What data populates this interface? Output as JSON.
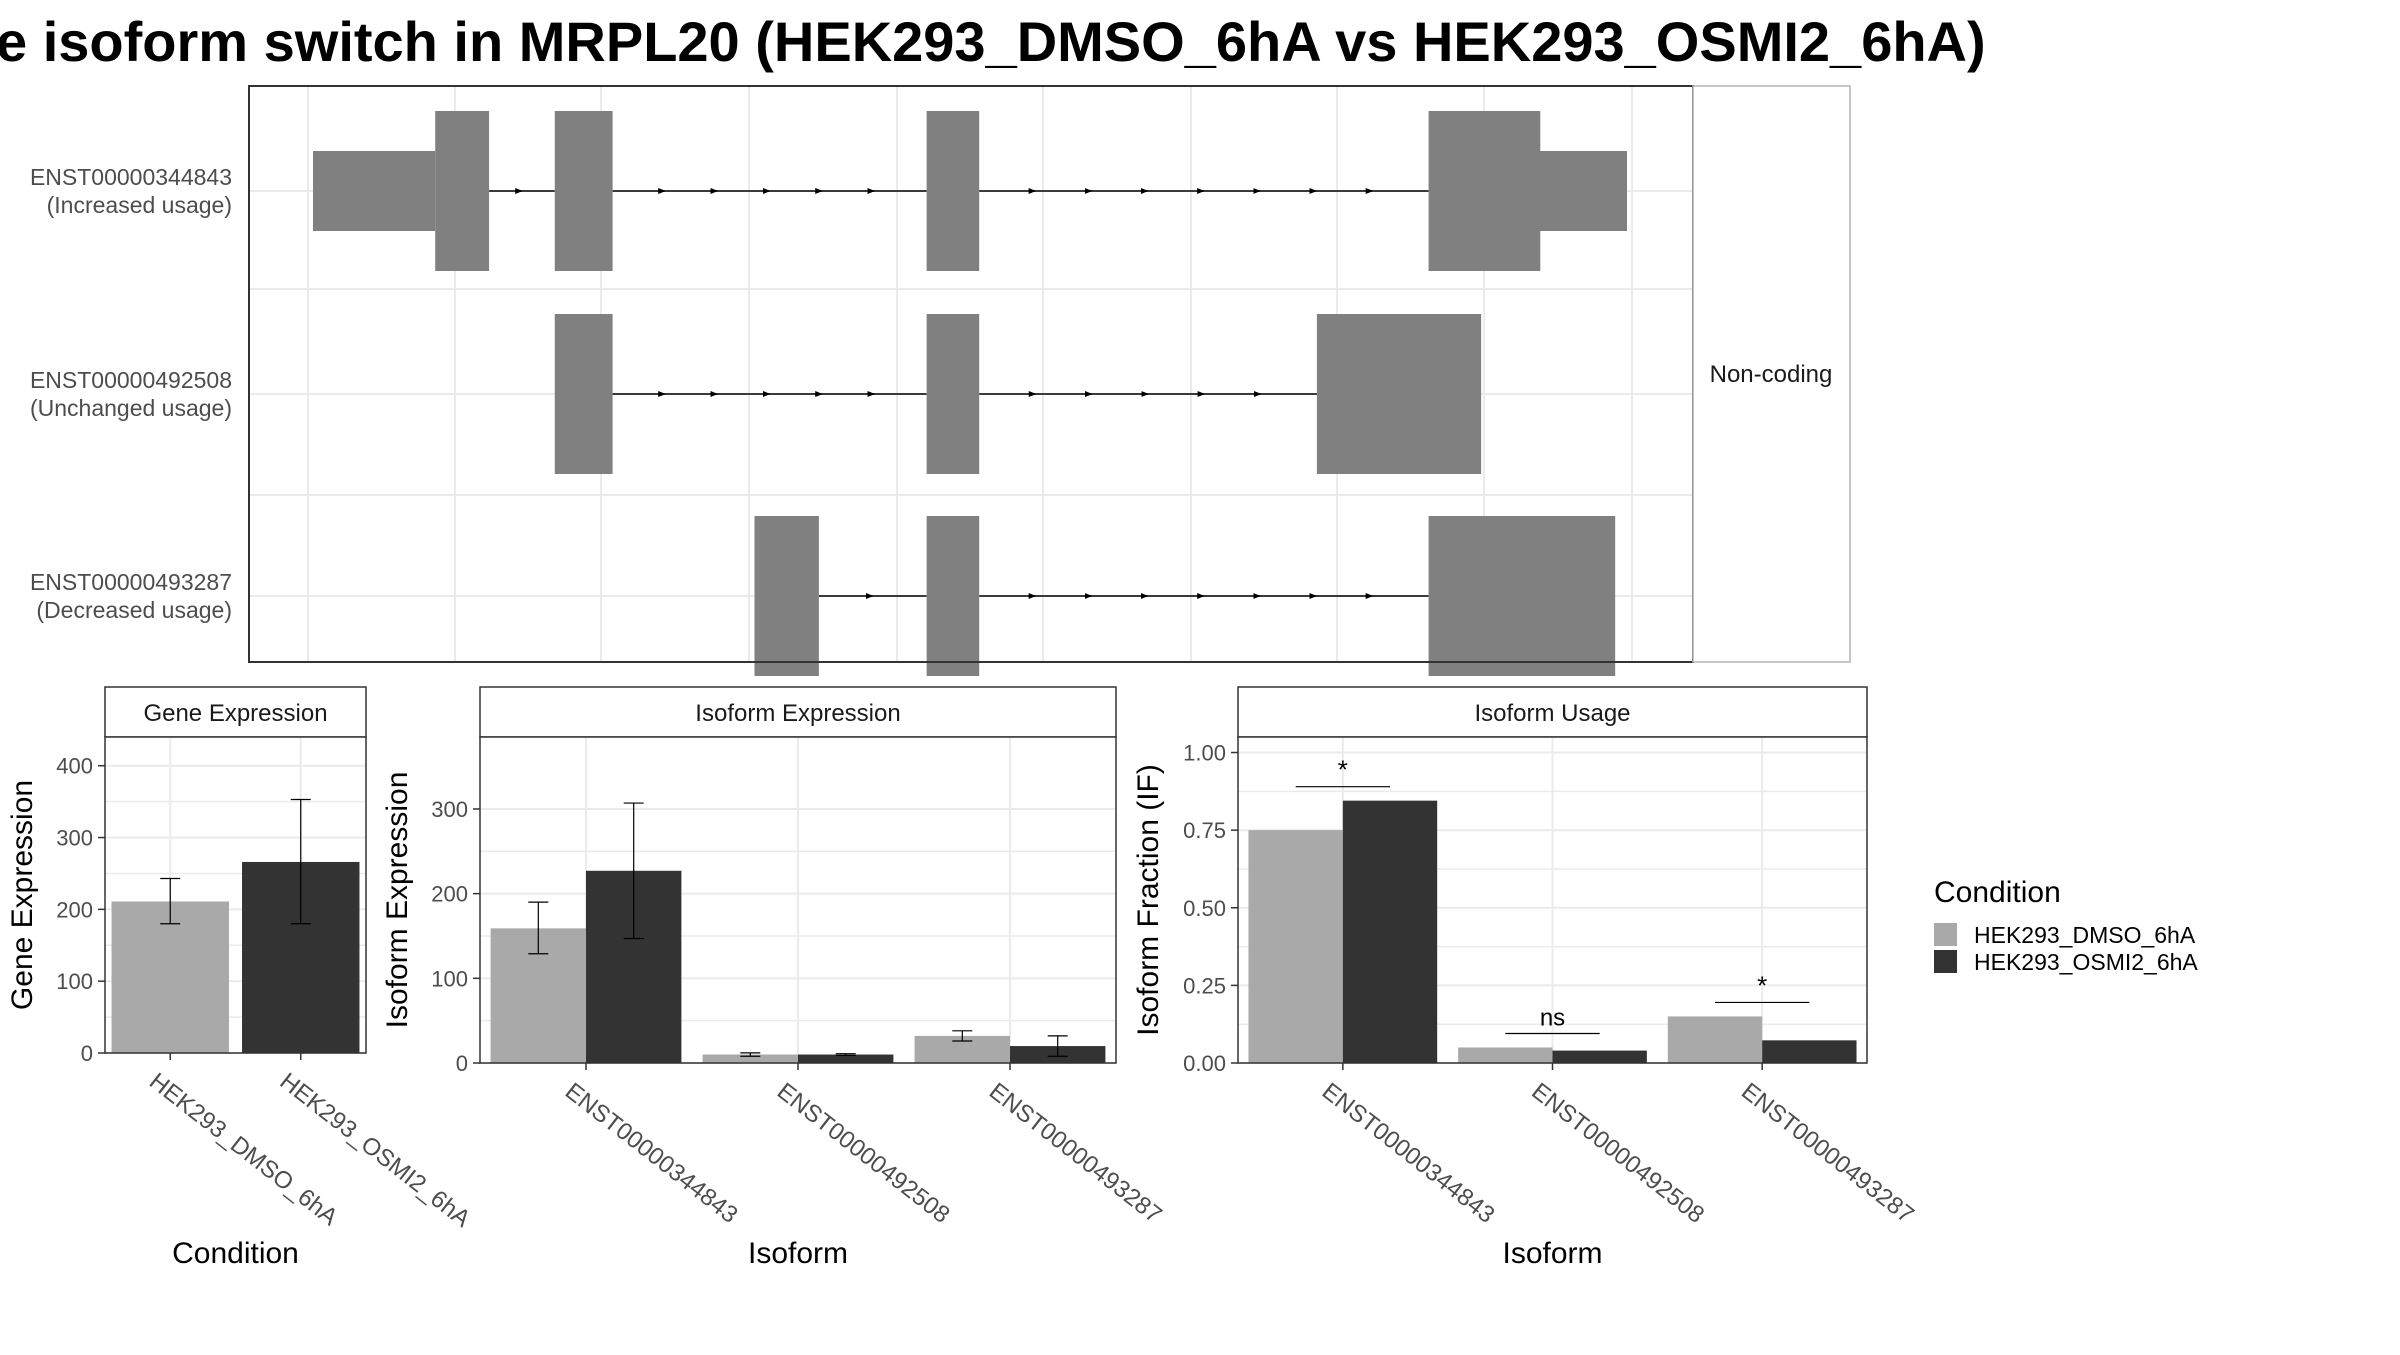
{
  "figure": {
    "title": "e isoform switch in MRPL20 (HEK293_DMSO_6hA vs HEK293_OSMI2_6hA)"
  },
  "colors": {
    "exon": "#808080",
    "condition1": "#a9a9a9",
    "condition2": "#333333",
    "grid": "#ebebeb",
    "panel_border": "#333333",
    "axis_text": "#4d4d4d"
  },
  "chart_data": [
    {
      "type": "gene_structure",
      "transcripts": [
        {
          "id": "ENST00000344843",
          "label": "(Increased usage)",
          "utr": [
            [
              0,
              0.093
            ],
            [
              0.853,
              1.0
            ]
          ],
          "exons": [
            [
              0.093,
              0.134
            ],
            [
              0.184,
              0.228
            ],
            [
              0.467,
              0.507
            ],
            [
              0.849,
              0.934
            ]
          ]
        },
        {
          "id": "ENST00000492508",
          "label": "(Unchanged usage)",
          "utr": [],
          "exons": [
            [
              0.184,
              0.228
            ],
            [
              0.467,
              0.507
            ],
            [
              0.764,
              0.889
            ]
          ]
        },
        {
          "id": "ENST00000493287",
          "label": "(Decreased usage)",
          "utr": [],
          "exons": [
            [
              0.336,
              0.385
            ],
            [
              0.467,
              0.507
            ],
            [
              0.849,
              0.991
            ]
          ]
        }
      ],
      "strip_label": "Non-coding"
    },
    {
      "type": "bar",
      "title": "Gene Expression",
      "xlabel": "Condition",
      "ylabel": "Gene Expression",
      "categories": [
        "HEK293_DMSO_6hA",
        "HEK293_OSMI2_6hA"
      ],
      "values": [
        211,
        266
      ],
      "errors": [
        [
          180,
          243
        ],
        [
          180,
          353
        ]
      ],
      "ylim": [
        0,
        440
      ],
      "yticks": [
        0,
        100,
        200,
        300,
        400
      ]
    },
    {
      "type": "bar",
      "title": "Isoform Expression",
      "xlabel": "Isoform",
      "ylabel": "Isoform Expression",
      "categories": [
        "ENST00000344843",
        "ENST00000492508",
        "ENST00000493287"
      ],
      "series": [
        {
          "name": "HEK293_DMSO_6hA",
          "values": [
            159,
            10,
            32
          ],
          "errors": [
            [
              129,
              190
            ],
            [
              8,
              12
            ],
            [
              26,
              38
            ]
          ]
        },
        {
          "name": "HEK293_OSMI2_6hA",
          "values": [
            227,
            10,
            20
          ],
          "errors": [
            [
              147,
              307
            ],
            [
              9,
              11
            ],
            [
              8,
              32
            ]
          ]
        }
      ],
      "ylim": [
        0,
        385
      ],
      "yticks": [
        0,
        100,
        200,
        300
      ]
    },
    {
      "type": "bar",
      "title": "Isoform Usage",
      "xlabel": "Isoform",
      "ylabel": "Isoform Fraction (IF)",
      "categories": [
        "ENST00000344843",
        "ENST00000492508",
        "ENST00000493287"
      ],
      "series": [
        {
          "name": "HEK293_DMSO_6hA",
          "values": [
            0.75,
            0.05,
            0.15
          ]
        },
        {
          "name": "HEK293_OSMI2_6hA",
          "values": [
            0.845,
            0.04,
            0.073
          ]
        }
      ],
      "significance": [
        {
          "label": "*",
          "y": 0.89
        },
        {
          "label": "ns",
          "y": 0.095
        },
        {
          "label": "*",
          "y": 0.195
        }
      ],
      "ylim": [
        0,
        1.05
      ],
      "yticks": [
        "0.00",
        "0.25",
        "0.50",
        "0.75",
        "1.00"
      ]
    }
  ],
  "legend": {
    "title": "Condition",
    "items": [
      "HEK293_DMSO_6hA",
      "HEK293_OSMI2_6hA"
    ]
  }
}
